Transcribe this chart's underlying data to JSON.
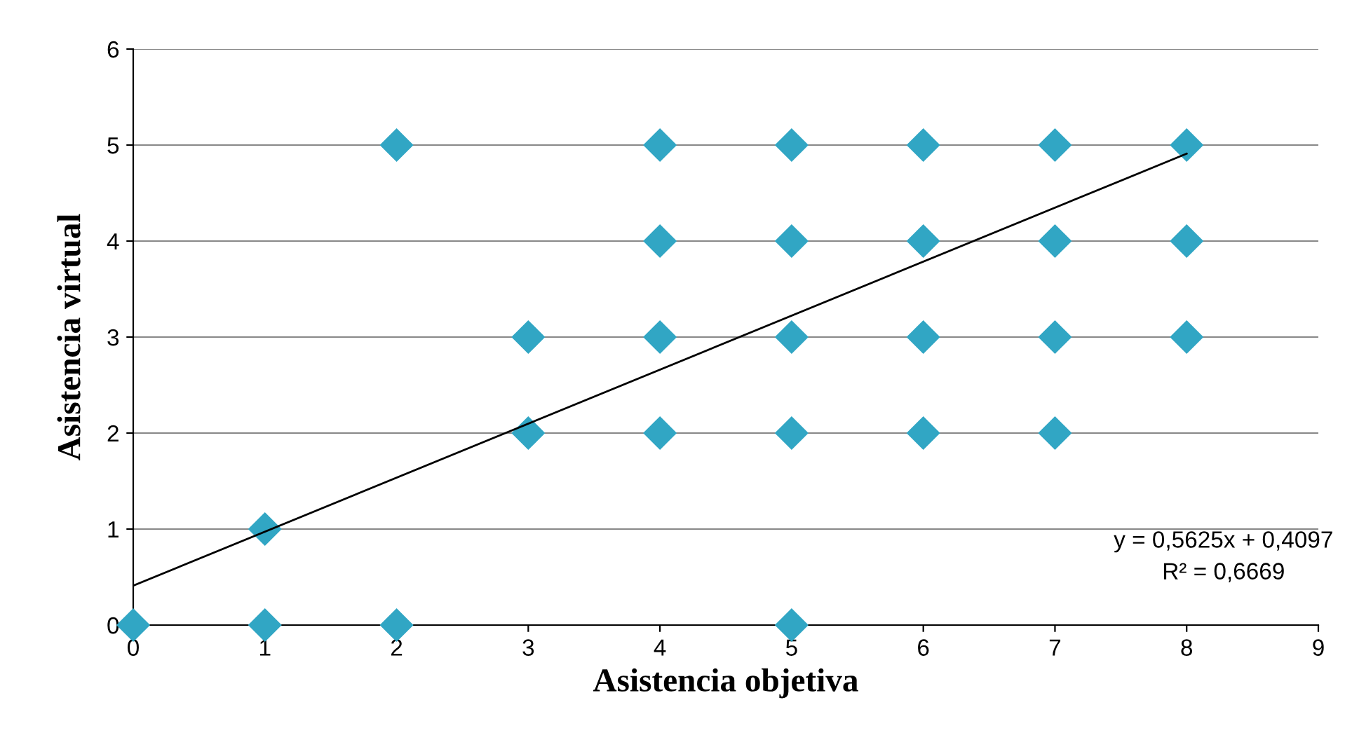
{
  "chart_data": {
    "type": "scatter",
    "xlabel": "Asistencia objetiva",
    "ylabel": "Asistencia virtual",
    "xlim": [
      0,
      9
    ],
    "ylim": [
      0,
      6
    ],
    "xticks": [
      0,
      1,
      2,
      3,
      4,
      5,
      6,
      7,
      8,
      9
    ],
    "yticks": [
      0,
      1,
      2,
      3,
      4,
      5,
      6
    ],
    "grid": "y",
    "marker": "diamond",
    "series": [
      {
        "color": "#31a6c4",
        "x": [
          0,
          1,
          2,
          5,
          1,
          3,
          4,
          5,
          6,
          7,
          3,
          4,
          5,
          6,
          7,
          8,
          4,
          5,
          6,
          7,
          8,
          2,
          4,
          5,
          6,
          7,
          8
        ],
        "values": [
          0,
          0,
          0,
          0,
          1,
          2,
          2,
          2,
          2,
          2,
          3,
          3,
          3,
          3,
          3,
          3,
          4,
          4,
          4,
          4,
          4,
          5,
          5,
          5,
          5,
          5,
          5
        ]
      },
      {
        "type": "line",
        "color": "#000000",
        "x": [
          0,
          8
        ],
        "values": [
          0.41,
          4.91
        ],
        "marker": "none"
      }
    ],
    "annotations": [
      "y = 0,5625x + 0,4097",
      "R² = 0,6669"
    ]
  }
}
